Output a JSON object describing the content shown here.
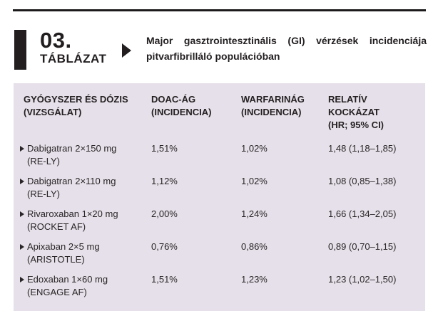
{
  "colors": {
    "panel_bg": "#e5e0e9",
    "ink": "#231f20"
  },
  "label_block": {
    "number": "03.",
    "word": "TÁBLÁZAT"
  },
  "title": {
    "line1": "Major gasztrointesztinális (GI) vérzések incidenciája",
    "line2": "pitvarfibrilláló populációban"
  },
  "table": {
    "columns": [
      {
        "l1": "GYÓGYSZER ÉS DÓZIS",
        "l2": "(VIZSGÁLAT)"
      },
      {
        "l1": "DOAC-ÁG",
        "l2": "(INCIDENCIA)"
      },
      {
        "l1": "WARFARINÁG",
        "l2": "(INCIDENCIA)"
      },
      {
        "l1": "RELATÍV",
        "l2": "KOCKÁZAT",
        "l3": "(HR; 95% CI)"
      }
    ],
    "rows": [
      {
        "drug": "Dabigatran 2×150 mg",
        "study": "(RE-LY)",
        "doac": "1,51%",
        "warfarin": "1,02%",
        "rr": "1,48 (1,18–1,85)"
      },
      {
        "drug": "Dabigatran 2×110 mg",
        "study": "(RE-LY)",
        "doac": "1,12%",
        "warfarin": "1,02%",
        "rr": "1,08 (0,85–1,38)"
      },
      {
        "drug": "Rivaroxaban 1×20 mg",
        "study": "(ROCKET AF)",
        "doac": "2,00%",
        "warfarin": "1,24%",
        "rr": "1,66 (1,34–2,05)"
      },
      {
        "drug": "Apixaban 2×5 mg",
        "study": "(ARISTOTLE)",
        "doac": "0,76%",
        "warfarin": "0,86%",
        "rr": "0,89 (0,70–1,15)"
      },
      {
        "drug": "Edoxaban 1×60 mg",
        "study": "(ENGAGE AF)",
        "doac": "1,51%",
        "warfarin": "1,23%",
        "rr": "1,23 (1,02–1,50)"
      }
    ]
  }
}
